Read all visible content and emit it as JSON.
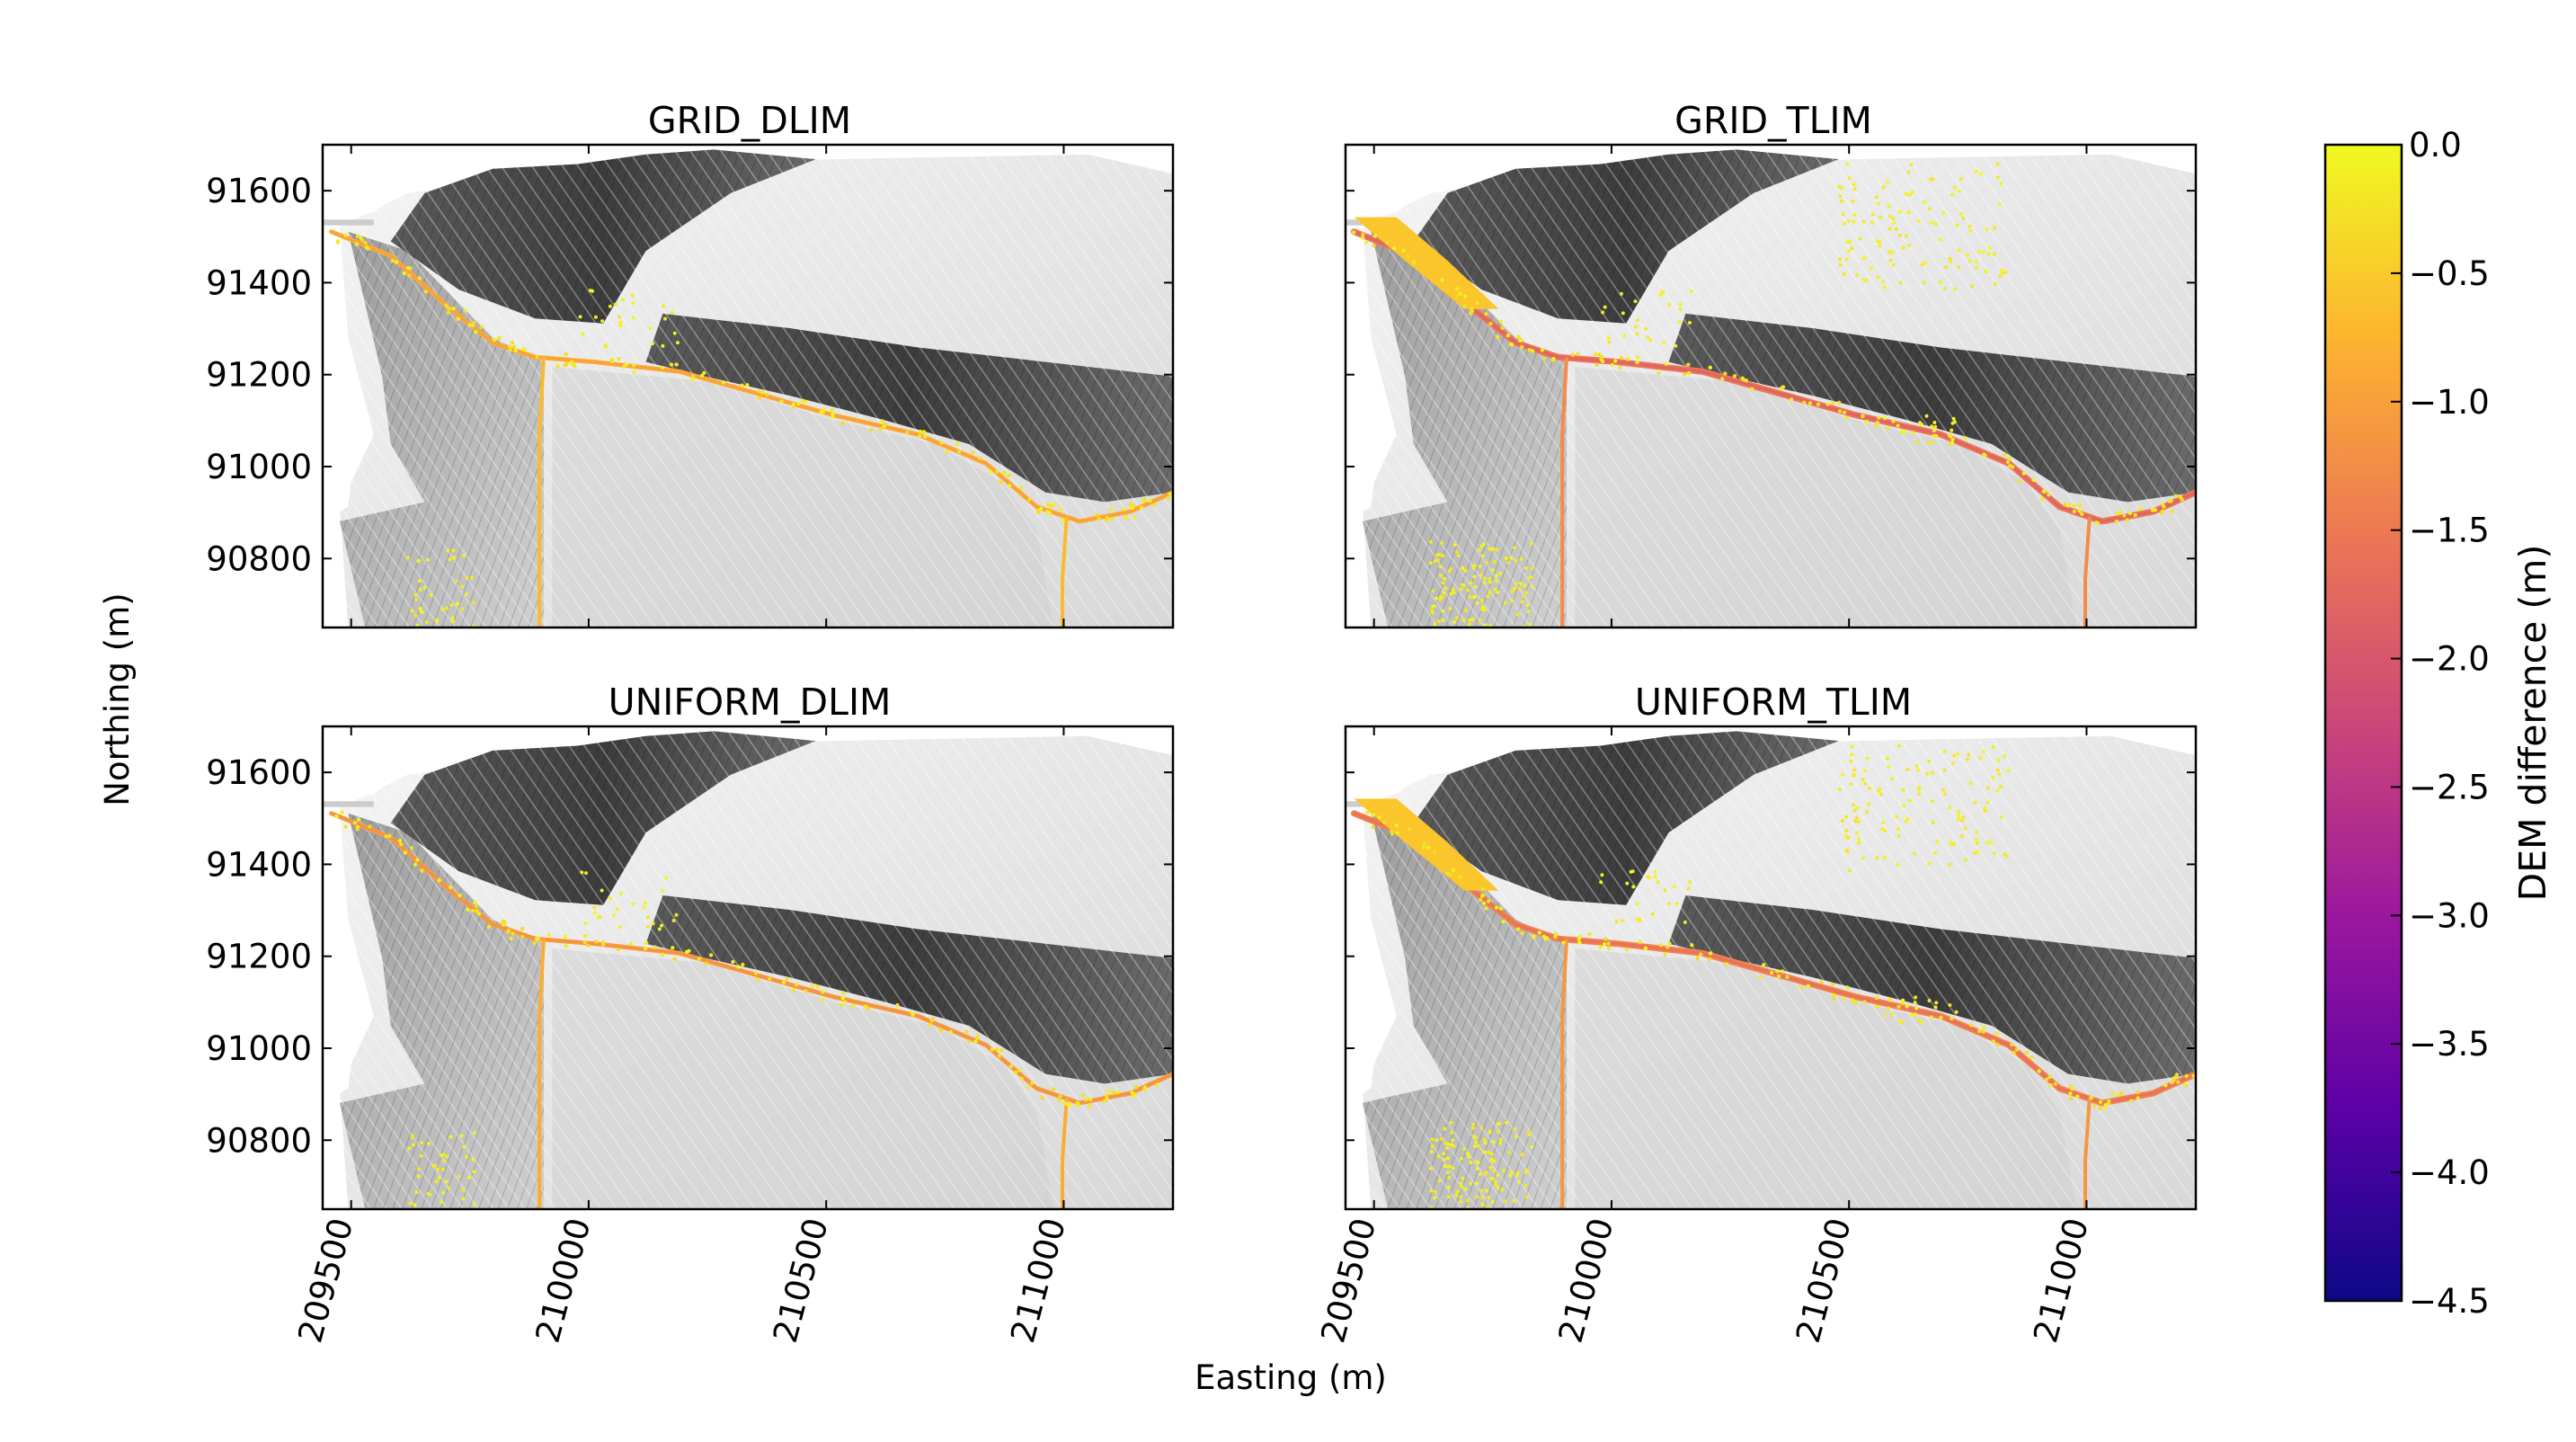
{
  "figure": {
    "xlabel": "Easting (m)",
    "ylabel": "Northing (m)"
  },
  "chart_data": [
    {
      "type": "heatmap",
      "title": "GRID_DLIM",
      "xlim": [
        209440,
        211230
      ],
      "ylim": [
        90650,
        91700
      ],
      "x_ticks": [
        209500,
        210000,
        210500,
        211000
      ],
      "y_ticks": [
        90800,
        91000,
        91200,
        91400,
        91600
      ],
      "x_tick_labels_shown": false,
      "y_tick_labels_shown": true,
      "channel_max_loss": -1.0,
      "deposit_zones": "channel"
    },
    {
      "type": "heatmap",
      "title": "GRID_TLIM",
      "xlim": [
        209440,
        211230
      ],
      "ylim": [
        90650,
        91700
      ],
      "x_ticks": [
        209500,
        210000,
        210500,
        211000
      ],
      "y_ticks": [
        90800,
        91000,
        91200,
        91400,
        91600
      ],
      "x_tick_labels_shown": false,
      "y_tick_labels_shown": false,
      "channel_max_loss": -1.8,
      "deposit_zones": "channel, upper slope, lower-left slope"
    },
    {
      "type": "heatmap",
      "title": "UNIFORM_DLIM",
      "xlim": [
        209440,
        211230
      ],
      "ylim": [
        90650,
        91700
      ],
      "x_ticks": [
        209500,
        210000,
        210500,
        211000
      ],
      "y_ticks": [
        90800,
        91000,
        91200,
        91400,
        91600
      ],
      "x_tick_labels_shown": true,
      "y_tick_labels_shown": true,
      "channel_max_loss": -1.2,
      "deposit_zones": "channel"
    },
    {
      "type": "heatmap",
      "title": "UNIFORM_TLIM",
      "xlim": [
        209440,
        211230
      ],
      "ylim": [
        90650,
        91700
      ],
      "x_ticks": [
        209500,
        210000,
        210500,
        211000
      ],
      "y_ticks": [
        90800,
        91000,
        91200,
        91400,
        91600
      ],
      "x_tick_labels_shown": true,
      "y_tick_labels_shown": false,
      "channel_max_loss": -1.6,
      "deposit_zones": "channel, upper slope, lower-left slope"
    }
  ],
  "colorbar": {
    "label": "DEM difference (m)",
    "min": -4.5,
    "max": 0.0,
    "ticks": [
      0.0,
      -0.5,
      -1.0,
      -1.5,
      -2.0,
      -2.5,
      -3.0,
      -3.5,
      -4.0,
      -4.5
    ],
    "tick_labels": [
      "0.0",
      "−0.5",
      "−1.0",
      "−1.5",
      "−2.0",
      "−2.5",
      "−3.0",
      "−3.5",
      "−4.0",
      "−4.5"
    ],
    "colormap": "plasma",
    "colors": [
      "#0d0887",
      "#5c01a6",
      "#9c179e",
      "#cc4778",
      "#ed7953",
      "#fdb42f",
      "#f0f921"
    ]
  }
}
